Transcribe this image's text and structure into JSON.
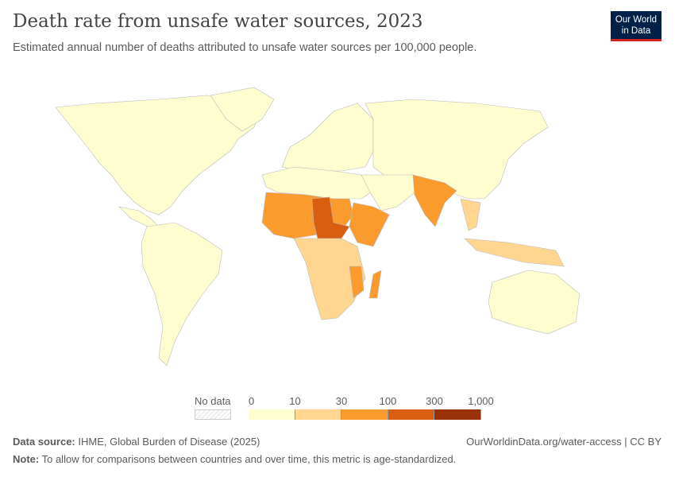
{
  "header": {
    "title": "Death rate from unsafe water sources, 2023",
    "subtitle": "Estimated annual number of deaths attributed to unsafe water sources per 100,000 people.",
    "logo_line1": "Our World",
    "logo_line2": "in Data"
  },
  "legend": {
    "no_data_label": "No data",
    "ticks": [
      "0",
      "10",
      "30",
      "100",
      "300",
      "1,000"
    ],
    "bins": [
      {
        "from": 0,
        "to": 10,
        "color": "#fefdd0"
      },
      {
        "from": 10,
        "to": 30,
        "color": "#fed690"
      },
      {
        "from": 30,
        "to": 100,
        "color": "#fb9a2d"
      },
      {
        "from": 100,
        "to": 300,
        "color": "#d95e0f"
      },
      {
        "from": 300,
        "to": 1000,
        "color": "#993208"
      }
    ]
  },
  "footer": {
    "source_label": "Data source:",
    "source_text": "IHME, Global Burden of Disease (2025)",
    "url": "OurWorldinData.org/water-access | CC BY",
    "note_label": "Note:",
    "note_text": "To allow for comparisons between countries and over time, this metric is age-standardized."
  }
}
